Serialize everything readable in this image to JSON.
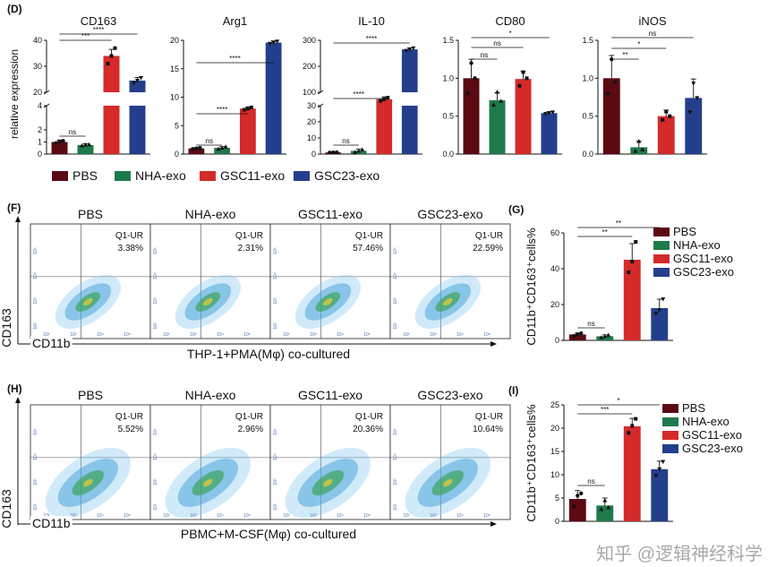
{
  "watermark": "知乎 @逻辑神经科学",
  "colors": {
    "PBS": "#5c0a12",
    "NHA-exo": "#1e7a4a",
    "GSC11-exo": "#d42a2a",
    "GSC23-exo": "#233f8c"
  },
  "panel_D": {
    "label": "(D)",
    "ylabel": "relative expression",
    "legend": [
      "PBS",
      "NHA-exo",
      "GSC11-exo",
      "GSC23-exo"
    ],
    "charts": [
      {
        "title": "CD163",
        "upper_ticks": [
          "20",
          "30",
          "40"
        ],
        "lower_ticks": [
          "0",
          "1",
          "2",
          "4"
        ],
        "sig": [
          "ns",
          "***",
          "****"
        ]
      },
      {
        "title": "Arg1",
        "ticks": [
          "0",
          "5",
          "10",
          "15",
          "20"
        ],
        "sig": [
          "ns",
          "****",
          "****"
        ]
      },
      {
        "title": "IL-10",
        "upper_ticks": [
          "100",
          "200",
          "300"
        ],
        "lower_ticks": [
          "0",
          "10",
          "20",
          "30"
        ],
        "sig": [
          "ns",
          "****",
          "****"
        ]
      },
      {
        "title": "CD80",
        "ticks": [
          "0.0",
          "0.5",
          "1.0",
          "1.5"
        ],
        "sig": [
          "ns",
          "ns",
          "*"
        ]
      },
      {
        "title": "iNOS",
        "ticks": [
          "0.0",
          "0.5",
          "1.0",
          "1.5"
        ],
        "sig": [
          "**",
          "*",
          "ns"
        ]
      }
    ]
  },
  "panel_F": {
    "label": "(F)",
    "plots": [
      {
        "title": "PBS",
        "quad": "Q1-UR",
        "pct": "3.38%"
      },
      {
        "title": "NHA-exo",
        "quad": "Q1-UR",
        "pct": "2.31%"
      },
      {
        "title": "GSC11-exo",
        "quad": "Q1-UR",
        "pct": "57.46%"
      },
      {
        "title": "GSC23-exo",
        "quad": "Q1-UR",
        "pct": "22.59%"
      }
    ],
    "yaxis": "CD163",
    "xaxis": "CD11b",
    "condition": "THP-1+PMA(Mφ) co-cultured",
    "ticks": [
      "10²",
      "10³",
      "10⁴",
      "10⁵"
    ]
  },
  "panel_H": {
    "label": "(H)",
    "plots": [
      {
        "title": "PBS",
        "quad": "Q1-UR",
        "pct": "5.52%"
      },
      {
        "title": "NHA-exo",
        "quad": "Q1-UR",
        "pct": "2.96%"
      },
      {
        "title": "GSC11-exo",
        "quad": "Q1-UR",
        "pct": "20.36%"
      },
      {
        "title": "GSC23-exo",
        "quad": "Q1-UR",
        "pct": "10.64%"
      }
    ],
    "yaxis": "CD163",
    "xaxis": "CD11b",
    "condition": "PBMC+M-CSF(Mφ) co-cultured",
    "ticks": [
      "10²",
      "10³",
      "10⁴",
      "10⁵"
    ]
  },
  "panel_G": {
    "label": "(G)",
    "ylabel": "CD11b⁺CD163⁺cells%",
    "ticks": [
      "0",
      "20",
      "40",
      "60"
    ],
    "legend": [
      "PBS",
      "NHA-exo",
      "GSC11-exo",
      "GSC23-exo"
    ],
    "sig": [
      "ns",
      "**",
      "**"
    ]
  },
  "panel_I": {
    "label": "(I)",
    "ylabel": "CD11b⁺CD163⁺cells%",
    "ticks": [
      "0",
      "5",
      "10",
      "15",
      "20",
      "25"
    ],
    "legend": [
      "PBS",
      "NHA-exo",
      "GSC11-exo",
      "GSC23-exo"
    ],
    "sig": [
      "ns",
      "***",
      "*"
    ]
  },
  "chart_data": [
    {
      "type": "bar",
      "title": "CD163",
      "ylabel": "relative expression",
      "broken_axis": true,
      "categories": [
        "PBS",
        "NHA-exo",
        "GSC11-exo",
        "GSC23-exo"
      ],
      "values": [
        1.0,
        0.75,
        34,
        24.5
      ],
      "errors": [
        0.15,
        0.1,
        2.5,
        1.2
      ],
      "points": [
        [
          0.9,
          1.05,
          1.1
        ],
        [
          0.7,
          0.78,
          0.8
        ],
        [
          31,
          34,
          37
        ],
        [
          23.5,
          24.5,
          25.5
        ]
      ]
    },
    {
      "type": "bar",
      "title": "Arg1",
      "ylim": [
        0,
        20
      ],
      "categories": [
        "PBS",
        "NHA-exo",
        "GSC11-exo",
        "GSC23-exo"
      ],
      "values": [
        1.0,
        1.1,
        8.0,
        19.6
      ],
      "errors": [
        0.1,
        0.2,
        0.3,
        0.3
      ],
      "points": [
        [
          0.9,
          1.0,
          1.1
        ],
        [
          0.9,
          1.1,
          1.3
        ],
        [
          7.8,
          8.0,
          8.2
        ],
        [
          19.4,
          19.6,
          19.8
        ]
      ]
    },
    {
      "type": "bar",
      "title": "IL-10",
      "broken_axis": true,
      "categories": [
        "PBS",
        "NHA-exo",
        "GSC11-exo",
        "GSC23-exo"
      ],
      "values": [
        1.0,
        2.0,
        34,
        265
      ],
      "errors": [
        0.3,
        1.0,
        1.5,
        6
      ],
      "points": [
        [
          0.9,
          1.0,
          1.1
        ],
        [
          1.2,
          2.0,
          2.8
        ],
        [
          33,
          34,
          35
        ],
        [
          260,
          265,
          270
        ]
      ]
    },
    {
      "type": "bar",
      "title": "CD80",
      "ylim": [
        0,
        1.5
      ],
      "categories": [
        "PBS",
        "NHA-exo",
        "GSC11-exo",
        "GSC23-exo"
      ],
      "values": [
        1.0,
        0.71,
        0.99,
        0.54
      ],
      "errors": [
        0.25,
        0.1,
        0.1,
        0.02
      ],
      "points": [
        [
          0.8,
          1.2,
          1.0
        ],
        [
          0.65,
          0.82,
          0.7
        ],
        [
          0.9,
          1.08,
          1.0
        ],
        [
          0.53,
          0.54,
          0.55
        ]
      ]
    },
    {
      "type": "bar",
      "title": "iNOS",
      "ylim": [
        0,
        1.5
      ],
      "categories": [
        "PBS",
        "NHA-exo",
        "GSC11-exo",
        "GSC23-exo"
      ],
      "values": [
        1.0,
        0.09,
        0.5,
        0.74
      ],
      "errors": [
        0.3,
        0.08,
        0.08,
        0.25
      ],
      "points": [
        [
          0.8,
          1.25,
          0.95
        ],
        [
          0.04,
          0.17,
          0.06
        ],
        [
          0.45,
          0.56,
          0.5
        ],
        [
          0.55,
          0.93,
          0.74
        ]
      ]
    },
    {
      "type": "bar",
      "title": "(G)",
      "ylabel": "CD11b⁺CD163⁺cells%",
      "ylim": [
        0,
        60
      ],
      "categories": [
        "PBS",
        "NHA-exo",
        "GSC11-exo",
        "GSC23-exo"
      ],
      "values": [
        3.3,
        2.3,
        45,
        18
      ],
      "errors": [
        0.8,
        0.8,
        9,
        5
      ],
      "points": [
        [
          2.5,
          3.4,
          4.0
        ],
        [
          1.6,
          2.3,
          3.0
        ],
        [
          38,
          44,
          55
        ],
        [
          15,
          17,
          23
        ]
      ]
    },
    {
      "type": "bar",
      "title": "(I)",
      "ylabel": "CD11b⁺CD163⁺cells%",
      "ylim": [
        0,
        25
      ],
      "categories": [
        "PBS",
        "NHA-exo",
        "GSC11-exo",
        "GSC23-exo"
      ],
      "values": [
        4.8,
        3.4,
        20.4,
        11.2
      ],
      "errors": [
        1.8,
        1.6,
        1.7,
        1.7
      ],
      "points": [
        [
          3.2,
          5.5,
          6.0
        ],
        [
          2.6,
          4.5,
          3.0
        ],
        [
          19.0,
          20.5,
          22.0
        ],
        [
          9.8,
          11.2,
          12.8
        ]
      ]
    }
  ]
}
